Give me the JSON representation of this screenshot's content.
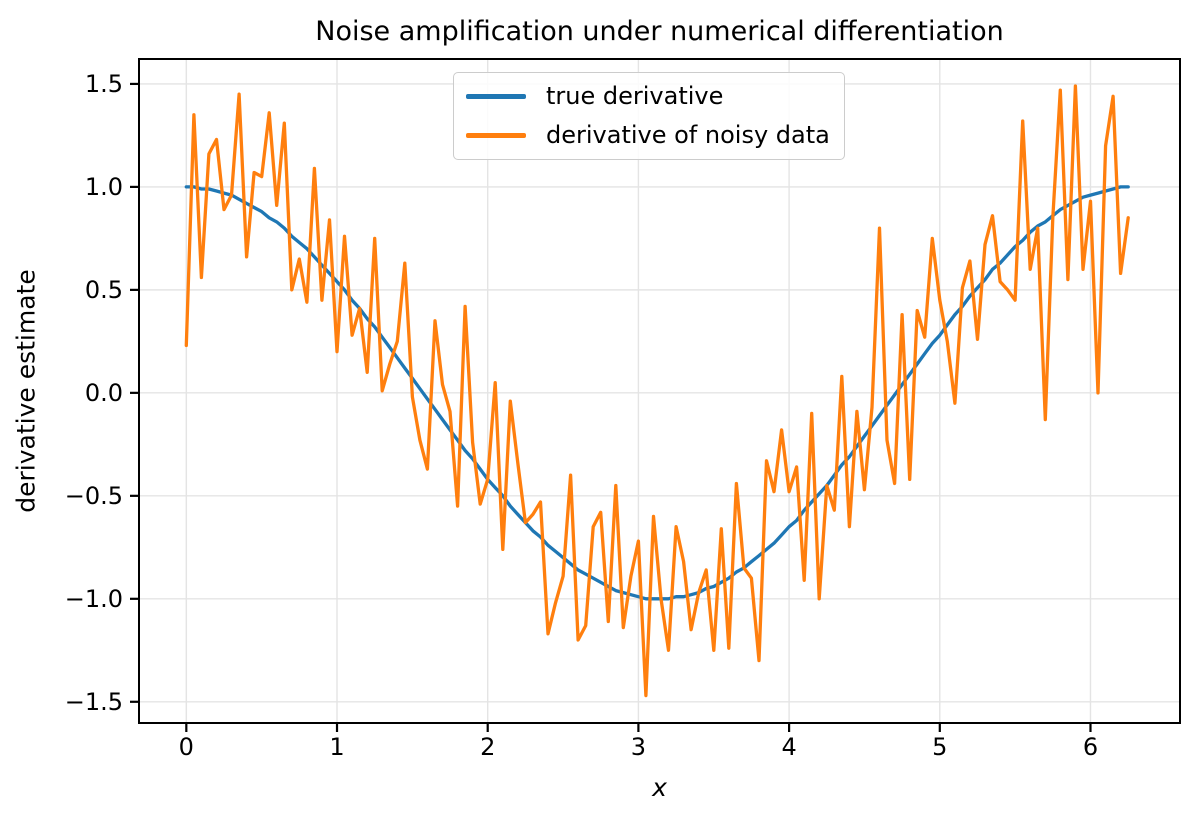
{
  "chart_data": {
    "type": "line",
    "title": "Noise amplification under numerical differentiation",
    "xlabel": "x",
    "ylabel": "derivative estimate",
    "xlim": [
      -0.314,
      6.594
    ],
    "ylim": [
      -1.603,
      1.621
    ],
    "grid": true,
    "legend_position": "upper center",
    "x_ticks": [
      0,
      1,
      2,
      3,
      4,
      5,
      6
    ],
    "x_tick_labels": [
      "0",
      "1",
      "2",
      "3",
      "4",
      "5",
      "6"
    ],
    "y_ticks": [
      -1.5,
      -1.0,
      -0.5,
      0.0,
      0.5,
      1.0,
      1.5
    ],
    "y_tick_labels": [
      "−1.5",
      "−1.0",
      "−0.5",
      "0.0",
      "0.5",
      "1.0",
      "1.5"
    ],
    "x": [
      0,
      0.05,
      0.1,
      0.15,
      0.2,
      0.25,
      0.3,
      0.35,
      0.4,
      0.45,
      0.5,
      0.55,
      0.6,
      0.65,
      0.7,
      0.75,
      0.8,
      0.85,
      0.9,
      0.95,
      1,
      1.05,
      1.1,
      1.15,
      1.2,
      1.25,
      1.3,
      1.35,
      1.4,
      1.45,
      1.5,
      1.55,
      1.6,
      1.65,
      1.7,
      1.75,
      1.8,
      1.85,
      1.9,
      1.95,
      2,
      2.05,
      2.1,
      2.15,
      2.2,
      2.25,
      2.3,
      2.35,
      2.4,
      2.45,
      2.5,
      2.55,
      2.6,
      2.65,
      2.7,
      2.75,
      2.8,
      2.85,
      2.9,
      2.95,
      3,
      3.05,
      3.1,
      3.15,
      3.2,
      3.25,
      3.3,
      3.35,
      3.4,
      3.45,
      3.5,
      3.55,
      3.6,
      3.65,
      3.7,
      3.75,
      3.8,
      3.85,
      3.9,
      3.95,
      4,
      4.05,
      4.1,
      4.15,
      4.2,
      4.25,
      4.3,
      4.35,
      4.4,
      4.45,
      4.5,
      4.55,
      4.6,
      4.65,
      4.7,
      4.75,
      4.8,
      4.85,
      4.9,
      4.95,
      5,
      5.05,
      5.1,
      5.15,
      5.2,
      5.25,
      5.3,
      5.35,
      5.4,
      5.45,
      5.5,
      5.55,
      5.6,
      5.65,
      5.7,
      5.75,
      5.8,
      5.85,
      5.9,
      5.95,
      6,
      6.05,
      6.1,
      6.15,
      6.2,
      6.25
    ],
    "series": [
      {
        "name": "true derivative",
        "color": "#1f77b4",
        "values": [
          1.0,
          1.0,
          0.99,
          0.99,
          0.98,
          0.97,
          0.96,
          0.94,
          0.92,
          0.9,
          0.88,
          0.85,
          0.83,
          0.8,
          0.76,
          0.73,
          0.7,
          0.66,
          0.62,
          0.58,
          0.54,
          0.5,
          0.45,
          0.41,
          0.36,
          0.32,
          0.27,
          0.22,
          0.17,
          0.12,
          0.07,
          0.02,
          -0.03,
          -0.08,
          -0.13,
          -0.18,
          -0.23,
          -0.28,
          -0.32,
          -0.37,
          -0.42,
          -0.46,
          -0.5,
          -0.55,
          -0.59,
          -0.63,
          -0.67,
          -0.7,
          -0.74,
          -0.77,
          -0.8,
          -0.83,
          -0.86,
          -0.88,
          -0.9,
          -0.92,
          -0.94,
          -0.96,
          -0.97,
          -0.98,
          -0.99,
          -1.0,
          -1.0,
          -1.0,
          -1.0,
          -0.99,
          -0.99,
          -0.98,
          -0.97,
          -0.95,
          -0.94,
          -0.92,
          -0.9,
          -0.87,
          -0.85,
          -0.82,
          -0.79,
          -0.76,
          -0.73,
          -0.69,
          -0.65,
          -0.62,
          -0.57,
          -0.53,
          -0.49,
          -0.45,
          -0.4,
          -0.35,
          -0.31,
          -0.26,
          -0.21,
          -0.16,
          -0.11,
          -0.06,
          -0.01,
          0.04,
          0.09,
          0.14,
          0.19,
          0.24,
          0.28,
          0.33,
          0.38,
          0.42,
          0.47,
          0.51,
          0.55,
          0.6,
          0.63,
          0.67,
          0.71,
          0.74,
          0.78,
          0.81,
          0.83,
          0.86,
          0.89,
          0.91,
          0.93,
          0.95,
          0.96,
          0.97,
          0.98,
          0.99,
          1.0,
          1.0
        ]
      },
      {
        "name": "derivative of noisy data",
        "color": "#ff7f0e",
        "values": [
          0.23,
          1.35,
          0.56,
          1.16,
          1.23,
          0.89,
          0.96,
          1.45,
          0.66,
          1.07,
          1.05,
          1.36,
          0.91,
          1.31,
          0.5,
          0.65,
          0.44,
          1.09,
          0.45,
          0.84,
          0.2,
          0.76,
          0.28,
          0.41,
          0.1,
          0.75,
          0.01,
          0.14,
          0.25,
          0.63,
          -0.02,
          -0.23,
          -0.37,
          0.35,
          0.04,
          -0.09,
          -0.55,
          0.42,
          -0.24,
          -0.54,
          -0.42,
          0.05,
          -0.76,
          -0.04,
          -0.34,
          -0.63,
          -0.59,
          -0.53,
          -1.17,
          -1.02,
          -0.89,
          -0.4,
          -1.2,
          -1.13,
          -0.65,
          -0.58,
          -1.11,
          -0.45,
          -1.14,
          -0.89,
          -0.72,
          -1.47,
          -0.6,
          -1.0,
          -1.25,
          -0.65,
          -0.82,
          -1.15,
          -0.97,
          -0.86,
          -1.25,
          -0.66,
          -1.24,
          -0.44,
          -0.85,
          -0.9,
          -1.3,
          -0.33,
          -0.48,
          -0.18,
          -0.48,
          -0.36,
          -0.91,
          -0.1,
          -1.0,
          -0.45,
          -0.57,
          0.08,
          -0.65,
          -0.09,
          -0.47,
          -0.07,
          0.8,
          -0.23,
          -0.44,
          0.38,
          -0.42,
          0.4,
          0.27,
          0.75,
          0.45,
          0.25,
          -0.05,
          0.51,
          0.64,
          0.26,
          0.72,
          0.86,
          0.54,
          0.5,
          0.45,
          1.32,
          0.6,
          0.8,
          -0.13,
          0.85,
          1.47,
          0.55,
          1.49,
          0.6,
          0.93,
          0.0,
          1.2,
          1.44,
          0.58,
          0.85
        ]
      }
    ],
    "style": {
      "grid_color": "#e4e4e4",
      "spine_color": "#000000",
      "background": "#ffffff",
      "legend_border": "#cccccc"
    }
  }
}
